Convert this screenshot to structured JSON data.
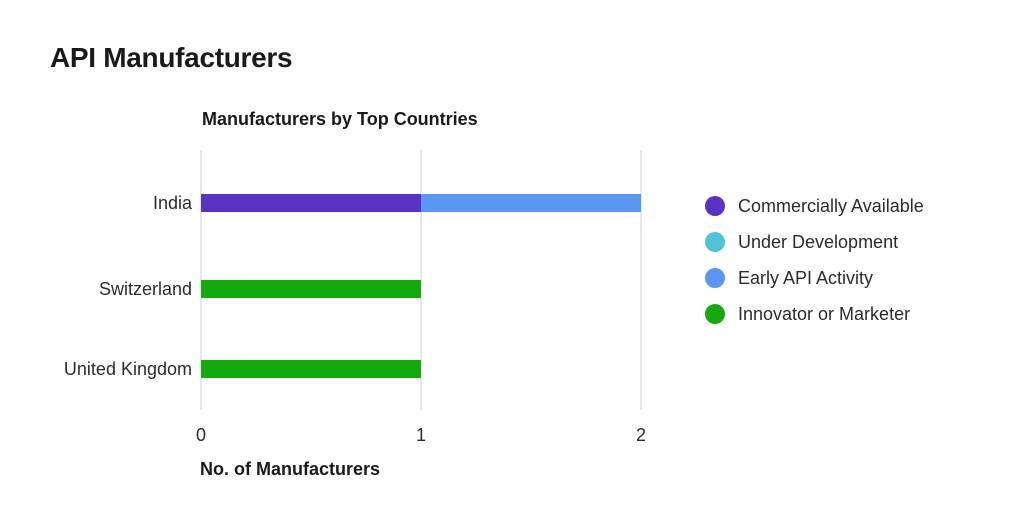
{
  "page": {
    "title": "API Manufacturers"
  },
  "chart_data": {
    "type": "bar",
    "orientation": "horizontal",
    "stacked": true,
    "title": "Manufacturers by Top Countries",
    "xlabel": "No. of Manufacturers",
    "ylabel": "",
    "categories": [
      "India",
      "Switzerland",
      "United Kingdom"
    ],
    "series": [
      {
        "name": "Commercially Available",
        "color": "#5a33c4",
        "values": [
          1,
          0,
          0
        ]
      },
      {
        "name": "Under Development",
        "color": "#4fc3d9",
        "values": [
          0,
          0,
          0
        ]
      },
      {
        "name": "Early API Activity",
        "color": "#5b96f2",
        "values": [
          1,
          0,
          0
        ]
      },
      {
        "name": "Innovator or Marketer",
        "color": "#16a80f",
        "values": [
          0,
          1,
          1
        ]
      }
    ],
    "xlim": [
      0,
      2
    ],
    "xticks": [
      "0",
      "1",
      "2"
    ],
    "grid": true,
    "legend_position": "right"
  }
}
